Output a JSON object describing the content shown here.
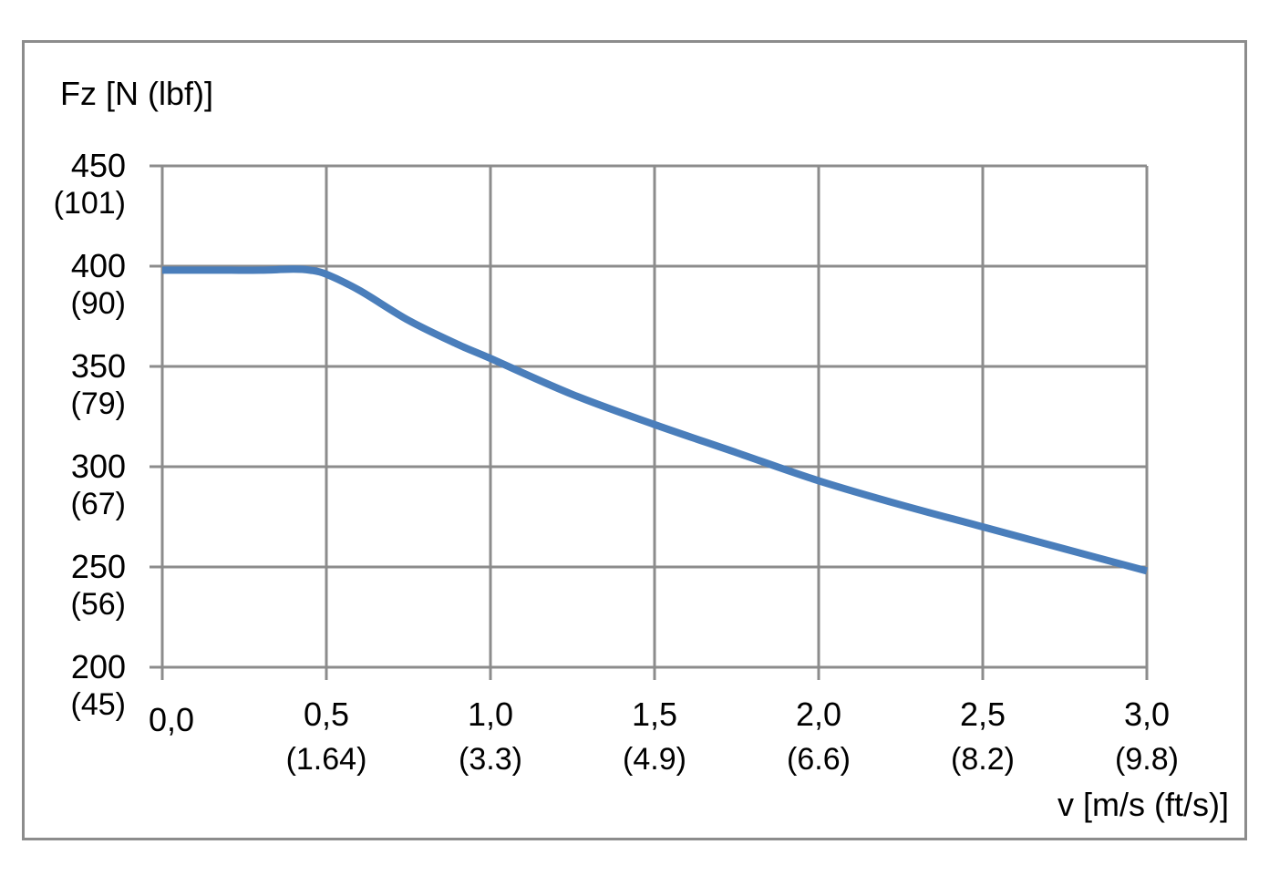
{
  "chart_data": {
    "type": "line",
    "title": "",
    "ylabel": "Fz [N (lbf)]",
    "xlabel": "v [m/s (ft/s)]",
    "xlim": [
      0,
      3
    ],
    "ylim": [
      200,
      450
    ],
    "grid": true,
    "x_ticks": [
      {
        "value": 0.0,
        "label": "0,0",
        "sub": ""
      },
      {
        "value": 0.5,
        "label": "0,5",
        "sub": "(1.64)"
      },
      {
        "value": 1.0,
        "label": "1,0",
        "sub": "(3.3)"
      },
      {
        "value": 1.5,
        "label": "1,5",
        "sub": "(4.9)"
      },
      {
        "value": 2.0,
        "label": "2,0",
        "sub": "(6.6)"
      },
      {
        "value": 2.5,
        "label": "2,5",
        "sub": "(8.2)"
      },
      {
        "value": 3.0,
        "label": "3,0",
        "sub": "(9.8)"
      }
    ],
    "y_ticks": [
      {
        "value": 450,
        "label": "450",
        "sub": "(101)"
      },
      {
        "value": 400,
        "label": "400",
        "sub": "(90)"
      },
      {
        "value": 350,
        "label": "350",
        "sub": "(79)"
      },
      {
        "value": 300,
        "label": "300",
        "sub": "(67)"
      },
      {
        "value": 250,
        "label": "250",
        "sub": "(56)"
      },
      {
        "value": 200,
        "label": "200",
        "sub": "(45)"
      }
    ],
    "series": [
      {
        "color": "#4a7ebb",
        "x": [
          0.0,
          0.1,
          0.2,
          0.3,
          0.4,
          0.45,
          0.5,
          0.6,
          0.75,
          0.9,
          1.0,
          1.25,
          1.5,
          1.75,
          2.0,
          2.25,
          2.5,
          2.75,
          3.0
        ],
        "y": [
          398,
          398,
          398,
          398,
          398.5,
          398,
          396,
          388,
          373,
          361,
          354,
          336,
          321,
          307,
          293,
          281,
          270,
          259,
          248
        ]
      }
    ]
  }
}
